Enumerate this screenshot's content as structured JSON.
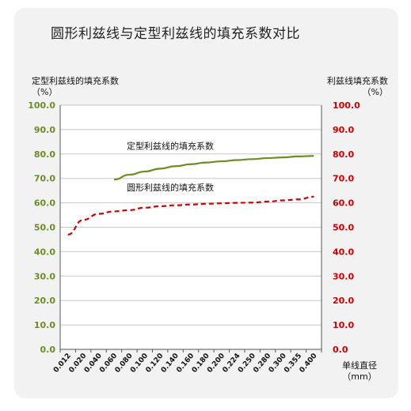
{
  "title": "圆形利兹线与定型利兹线的填充系数对比",
  "chart_data": {
    "type": "line",
    "title": "圆形利兹线与定型利兹线的填充系数对比",
    "y1label": "定型利兹线的填充系数",
    "y1unit": "（%）",
    "y2label": "利兹线填充系数",
    "y2unit": "（%）",
    "xlabel": "单线直径",
    "xunit": "（mm）",
    "categories": [
      "0.012",
      "0.020",
      "0.040",
      "0.060",
      "0.080",
      "0.100",
      "0.120",
      "0.140",
      "0.160",
      "0.180",
      "0.200",
      "0.224",
      "0.250",
      "0.280",
      "0.300",
      "0.355",
      "0.400"
    ],
    "y1ticks": [
      "0.0",
      "10.0",
      "20.0",
      "30.0",
      "40.0",
      "50.0",
      "60.0",
      "70.0",
      "80.0",
      "90.0",
      "100.0"
    ],
    "y2ticks": [
      "0.0",
      "10.0",
      "20.0",
      "30.0",
      "40.0",
      "50.0",
      "60.0",
      "70.0",
      "80.0",
      "90.0",
      "100.0"
    ],
    "ylim": [
      0,
      100
    ],
    "grid": "horizontal",
    "series": [
      {
        "name": "定型利兹线的填充系数",
        "color": "#6b8e23",
        "style": "solid",
        "axis": "left",
        "values": [
          null,
          null,
          null,
          69.5,
          71.5,
          72.8,
          74.0,
          75.0,
          75.8,
          76.5,
          77.0,
          77.5,
          77.9,
          78.3,
          78.6,
          79.0,
          79.2
        ]
      },
      {
        "name": "圆形利兹线的填充系数",
        "color": "#cc0000",
        "style": "dashed",
        "axis": "right",
        "values": [
          47.0,
          53.0,
          55.5,
          56.5,
          57.0,
          58.0,
          58.6,
          59.0,
          59.3,
          59.6,
          59.8,
          60.0,
          60.1,
          60.5,
          61.0,
          61.4,
          62.5
        ]
      }
    ]
  },
  "colors": {
    "left_axis_ticks": "#6b8e23",
    "right_axis_ticks": "#cc0000",
    "gridline": "#c8c8c8"
  }
}
